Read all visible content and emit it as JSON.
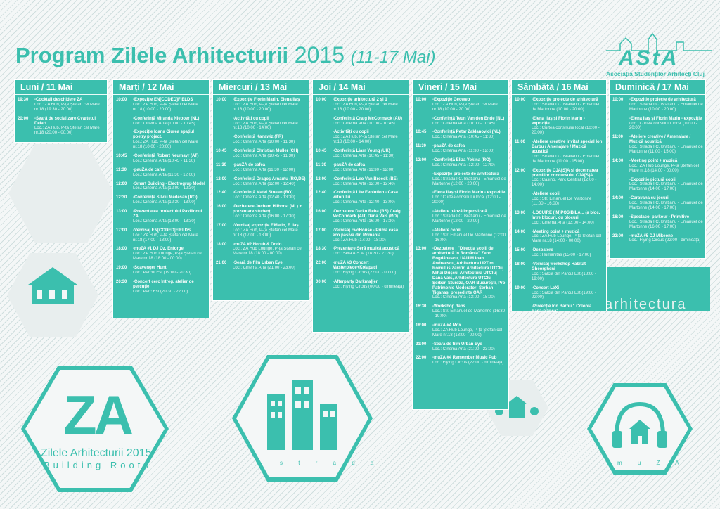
{
  "title": {
    "main": "Program Zilele Arhitecturii",
    "year": "2015",
    "dates": "(11-17 Mai)"
  },
  "logo": {
    "text": "AStA",
    "subtitle": "Asociația Studenților Arhitecți Cluj"
  },
  "za": {
    "mark": "ZA",
    "name": "Zilele Arhitecturii 2015",
    "sub": "Building Roots"
  },
  "deco": {
    "arhitectura": "arhitectura",
    "muza": "m u Z A",
    "strada": "s t r a d a"
  },
  "days": [
    {
      "title": "Luni / 11 Mai",
      "events": [
        {
          "time": "19:30",
          "name": "-Cocktail deschidere ZA",
          "loc": "Loc.: ZA Hub, P-ța Ștefan cel Mare nr.18 (19:30 - 20:00)"
        },
        {
          "time": "20:00",
          "name": "-Seară de socializare Cvartetul Delart",
          "loc": "Loc.: ZA Hub, P-ța Ștefan cel Mare nr.18 (20:00 - 00:00)"
        }
      ]
    },
    {
      "title": "Marți / 12 Mai",
      "events": [
        {
          "time": "10:00",
          "name": "-Expoziție EN[CODED]FIELDS",
          "loc": "Loc.: ZA Hub, P-ța Ștefan cel Mare nr.18 (10:00 - 20:00)"
        },
        {
          "time": "",
          "name": "-Conferință Miranda Nieboer (NL)",
          "loc": "Loc.: Cinema Arta (10:00 - 10:45)"
        },
        {
          "time": "",
          "name": "-Expoziție Ioana Ciurea spațiul poetry project.",
          "loc": "Loc.: ZA Hub, P-ța Ștefan cel Mare nr.18 (10:00 - 20:00)"
        },
        {
          "time": "10:45",
          "name": "-Conferință Robert Neumayr (AT)",
          "loc": "Loc.: Cinema Arta (10:45 - 11:30)"
        },
        {
          "time": "11:30",
          "name": "-pauZA de cafea",
          "loc": "Loc.: Cinema Arta (11:30 - 12:00)"
        },
        {
          "time": "12:00",
          "name": "-Smart Building - Electrogrup Model",
          "loc": "Loc.: Cinema Arta (12:00 - 12:30)"
        },
        {
          "time": "12:30",
          "name": "-Conferință Silviu Medeșan (RO)",
          "loc": "Loc.: Cinema Arta (12:30 - 13:00)"
        },
        {
          "time": "13:00",
          "name": "-Prezentarea proiectului Pavilionul ZA",
          "loc": "Loc.: Cinema Arta (13:00 - 13:30)"
        },
        {
          "time": "17:00",
          "name": "-Vernisaj EN[CODED]FIELDS",
          "loc": "Loc.: ZA Hub, P-ța Ștefan cel Mare nr.18 (17:00 - 18:00)"
        },
        {
          "time": "18:00",
          "name": "-muZA #1 DJ Oz, Enforge",
          "loc": "Loc.: ZA Hub Lounge, P-ța Ștefan cel Mare nr.18 (18:00 - 00:00)"
        },
        {
          "time": "19:00",
          "name": "-Scavenger Hunt",
          "loc": "Loc.: Parcul Est (19:00 - 20:30)"
        },
        {
          "time": "20:30",
          "name": "-Concert cerc întreg, atelier de percuție",
          "loc": "Loc.: Parc Est (20:30 - 22:00)"
        }
      ]
    },
    {
      "title": "Miercuri / 13 Mai",
      "events": [
        {
          "time": "10:00",
          "name": "-Expoziție Florin Marin, Elena Ilaș",
          "loc": "Loc.: ZA Hub, P-ța Ștefan cel Mare nr.18 (10:00 - 20:00)"
        },
        {
          "time": "",
          "name": "-Activități cu copii",
          "loc": "Loc.: ZA Hub, P-ța Ștefan cel Mare nr.18 (10:00 - 14:00)"
        },
        {
          "time": "",
          "name": "-Conferință Kanawiz (FR)",
          "loc": "Loc.: Cinema Arta (10:00 - 11:30)"
        },
        {
          "time": "10:45",
          "name": "-Conferință Christian Muller (CH)",
          "loc": "Loc.: Cinema Arta (10:45 - 11:30)"
        },
        {
          "time": "11:30",
          "name": "-pauZA de cafea",
          "loc": "Loc.: Cinema Arta (11:30 - 12:00)"
        },
        {
          "time": "12:00",
          "name": "-Conferință Dragoș Arnautu (RO,DE)",
          "loc": "Loc.: Cinema Arta (12:00 - 12:40)"
        },
        {
          "time": "12:40",
          "name": "-Conferință Matei Stoean (RO)",
          "loc": "Loc.: Cinema Arta (12:40 - 13:30)"
        },
        {
          "time": "16:00",
          "name": "-Dezbatere Jochem Hilhorst (NL) + prezentare studenți",
          "loc": "Loc.: Cinema Arta (16:00 - 17:30)"
        },
        {
          "time": "17:00",
          "name": "-Vernisaj expoziție F.Marin, E.Ilaș",
          "loc": "Loc.: ZA Hub, P-ța Ștefan cel Mare nr.18 (17:00 - 18:00)"
        },
        {
          "time": "18:00",
          "name": "-muZA #2 Norub & Dodo",
          "loc": "Loc.: ZA Hub Lounge, P-ța Ștefan cel Mare nr.18 (18:00 - 00:00)"
        },
        {
          "time": "21:00",
          "name": "-Seară de film Urban Eye",
          "loc": "Loc.: Cinema Arta (21:00 - 23:00)"
        }
      ]
    },
    {
      "title": "Joi / 14 Mai",
      "events": [
        {
          "time": "10:00",
          "name": "-Expoziție arhitectură 2 și 1",
          "loc": "Loc.: ZA Hub, P-ța Ștefan cel Mare nr.18 (10:00 - 20:00)"
        },
        {
          "time": "",
          "name": "-Conferință Craig McCormack (AU)",
          "loc": "Loc.: Cinema Arta (10:00 - 10:45)"
        },
        {
          "time": "",
          "name": "-Activități cu copii",
          "loc": "Loc.: ZA Hub, P-ța Ștefan cel Mare nr.18 (10:00 - 14:00)"
        },
        {
          "time": "10:45",
          "name": "-Conferință Liam Young (UK)",
          "loc": "Loc.: Cinema Arta (10:45 - 11:30)"
        },
        {
          "time": "11:30",
          "name": "-pauZA de cafea",
          "loc": "Loc.: Cinema Arta (11:30 - 12:00)"
        },
        {
          "time": "12:00",
          "name": "-Conferință Leo Van Broeck (BE)",
          "loc": "Loc.: Cinema Arta (12:00 - 12:40)"
        },
        {
          "time": "12:40",
          "name": "-Conferință Life Evolution - Casa viitorului",
          "loc": "Loc.: Cinema Arta (12:40 - 13:00)"
        },
        {
          "time": "16:00",
          "name": "-Dezbatere Darko Reba (RS) Craig McCormack (AU) Dana Vais (RO)",
          "loc": "Loc.: Cinema Arta (16:00 - 17:30)"
        },
        {
          "time": "17:00",
          "name": "-Vernisaj EvoHouse - Prima casă eco pasivă din Romania",
          "loc": "Loc.: ZA Hub (17:00 - 18:00)"
        },
        {
          "time": "18:30",
          "name": "-Prezentare Seră muzică acustică",
          "loc": "Loc.: Sera A.S.A. (18:30 - 21:30)"
        },
        {
          "time": "22:00",
          "name": "-muZA #3 Concert Masterpiece+Kolapaci",
          "loc": "Loc.: Flying Circus (22:00 - 00:00)"
        },
        {
          "time": "00:00",
          "name": "-Afterparty Darkma][er",
          "loc": "Loc.: Flying Circus (00:00 - dimineața)"
        }
      ]
    },
    {
      "title": "Vineri / 15 Mai",
      "events": [
        {
          "time": "10:00",
          "name": "-Expoziție Geoweb",
          "loc": "Loc.: ZA Hub, P-ța Ștefan cel Mare nr.18 (10:00 - 20:00)"
        },
        {
          "time": "",
          "name": "-Conferință Teun Van den Ende (NL)",
          "loc": "Loc.: Cinema Arta (10:00 - 10:45)"
        },
        {
          "time": "10:45",
          "name": "-Conferință Petar Zaklanovici (NL)",
          "loc": "Loc.: Cinema Arta (10:45 - 11:30)"
        },
        {
          "time": "11:30",
          "name": "-pauZA de cafea",
          "loc": "Loc.: Cinema Arta (11:30 - 12:00)"
        },
        {
          "time": "12:00",
          "name": "-Conferință Eliza Yokina (RO)",
          "loc": "Loc.: Cinema Arta (12:00 - 12:40)"
        },
        {
          "time": "",
          "name": "-Expoziție proiecte de arhitectură",
          "loc": "Loc.: Strada I.C. Bratianu - Emanuel de Martonne (12:00 - 20:00)"
        },
        {
          "time": "",
          "name": "-Elena Ilaș și Florin Marin - expoziție",
          "loc": "Loc.: Curtea consiliului local (12:00 - 20:00)"
        },
        {
          "time": "",
          "name": "-Ateliere pânză improvizată",
          "loc": "Loc.: Strada I.C. Bratianu - Emanuel de Martonne (12:00 - 20:00)"
        },
        {
          "time": "",
          "name": "-Ateliere copii",
          "loc": "Loc.: Str. Emanuel De Martonne (12:00 - 16:00)"
        },
        {
          "time": "13:00",
          "name": "-Dezbatere : \"Direcția școlii de arhitectură în România\" Zeno Bogdănescu, UAUIM Ioan Andreescu, Arhitectura UPTim Romulus Zamfir, Arhitectura UTCluj Mihai Drișcu, Arhitectura UTCluj Dana Vais, Arhitectura UTCluj Șerban Sturdza, OAR București, Pro Patrimonio Moderator: Șerban Țiganaș, președinte OAR",
          "loc": "Loc.: Cinema Arta (13:00 - 15:00)"
        },
        {
          "time": "16:30",
          "name": "-Workshop dans",
          "loc": "Loc.: Str. Emanuel de Martonne (16:30 - 19:00)"
        },
        {
          "time": "18:00",
          "name": "-muZA #4 Mox",
          "loc": "Loc.: ZA Hub Lounge, P-ța Ștefan cel Mare nr.18 (18:00 - 00:00)"
        },
        {
          "time": "21:00",
          "name": "-Seară de film Urban Eye",
          "loc": "Loc.: Cinema Arta (21:00 - 23:00)"
        },
        {
          "time": "22:00",
          "name": "-muZA #4 Remember Music Pub",
          "loc": "Loc.: Flying Circus (22:00 - dimineața)"
        }
      ]
    },
    {
      "title": "Sâmbătă / 16 Mai",
      "events": [
        {
          "time": "10:00",
          "name": "-Expoziție proiecte de arhitectură",
          "loc": "Loc.: Strada I.C. Bratianu - Emanuel de Martonne (10:00 - 20:00)"
        },
        {
          "time": "",
          "name": "-Elena Ilaș și Florin Marin - expoziție",
          "loc": "Loc.: Curtea consiliului local (10:00 - 20:00)"
        },
        {
          "time": "11:00",
          "name": "-Ateliere creative invitat special Ion Barbu / Amenajare / Muzică acustică",
          "loc": "Loc.: Strada I.C. Bratianu - Emanuel de Martonne (11:00 - 15:00)"
        },
        {
          "time": "12:00",
          "name": "-Expoziție CJA[S]A și decernarea premiilor concursului CJA[S]A",
          "loc": "Loc.: Casino, Parc Central (12:00 - 14:00)"
        },
        {
          "time": "",
          "name": "-Ateliere copii",
          "loc": "Loc.: Str. Emanuel De Martonne (11:00 - 16:00)"
        },
        {
          "time": "13:00",
          "name": "-LOCUIRE (IM)POSIBILĂ... (a bloc, între blocuri, cu blocuri",
          "loc": "Loc.: Cinema Arta (13:00 - 14:00)"
        },
        {
          "time": "14:00",
          "name": "-Meeting point + muzică",
          "loc": "Loc.: ZA Hub Lounge, P-ța Ștefan cel Mare nr.18 (14:00 - 00:00)"
        },
        {
          "time": "15:00",
          "name": "-Dezbatere",
          "loc": "Loc.: Humanitas (15:00 - 17:00)"
        },
        {
          "time": "18:00",
          "name": "-Vernisaj workshop Habitat Gheorgheni",
          "loc": "Loc.: Salcia din Parcul Est (18:00 - 19:00)"
        },
        {
          "time": "19:00",
          "name": "-Concert LeXi",
          "loc": "Loc.: Salcia din Parcul Est (19:00 - 22:00)"
        },
        {
          "time": "",
          "name": "-Proiecție Ion Barbu \" Colonia Rasa-plânsa\"",
          "loc": ""
        }
      ]
    },
    {
      "title": "Duminică / 17 Mai",
      "events": [
        {
          "time": "10:00",
          "name": "-Expoziție proiecte de arhitectură",
          "loc": "Loc.: Strada I.C. Bratianu - Emanuel de Martonne (10:00 - 20:00)"
        },
        {
          "time": "",
          "name": "-Elena Ilaș și Florin Marin - expoziție",
          "loc": "Loc.: Curtea consiliului local (10:00 - 20:00)"
        },
        {
          "time": "11:00",
          "name": "-Ateliere creative / Amenajare / Muzică acustică",
          "loc": "Loc.: Strada I.C. Bratianu - Emanuel de Martonne (11:00 - 15:00)"
        },
        {
          "time": "14:00",
          "name": "-Meeting point + muzică",
          "loc": "Loc.: ZA Hub Lounge, P-ța Ștefan cel Mare nr.18 (14:00 - 00:00)"
        },
        {
          "time": "",
          "name": "-Expoziție pictură copii",
          "loc": "Loc.: Strada I.C. Bratianu - Emanuel de Martonne (14:00 - 17:00)"
        },
        {
          "time": "14:00",
          "name": "-Caravana cu jocuri",
          "loc": "Loc.: Strada I.C. Bratianu - Emanuel de Martonne (14:00 - 17:00)"
        },
        {
          "time": "16:00",
          "name": "-Spectacol parkour - Primitive",
          "loc": "Loc.: Strada I.C. Bratianu - Emanuel de Martonne (16:00 - 17:00)"
        },
        {
          "time": "22:00",
          "name": "-muZA #5 DJ Mikeone",
          "loc": "Loc.: Flying Circus (22:00 - dimineața)"
        }
      ]
    }
  ]
}
